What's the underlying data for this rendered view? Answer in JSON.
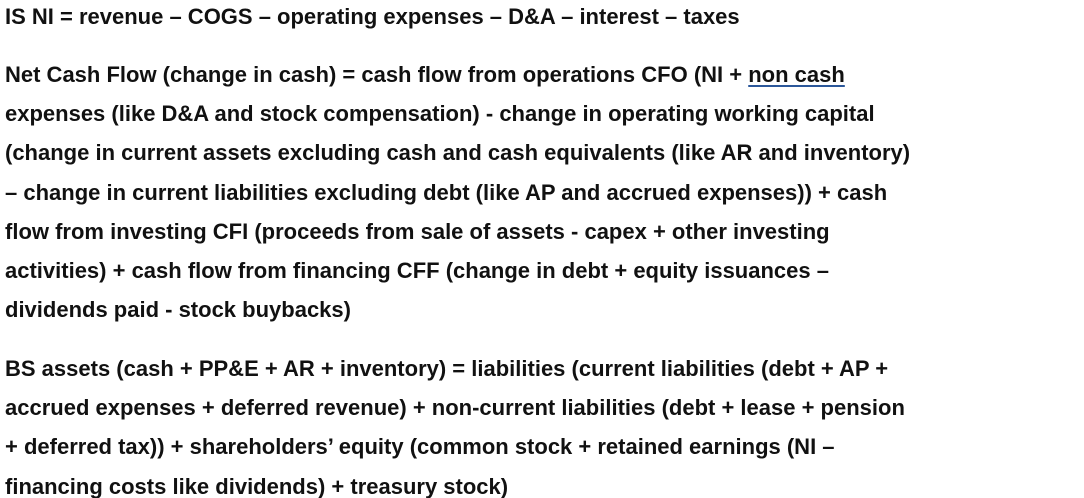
{
  "paragraphs": {
    "income_statement": {
      "lines": [
        "IS NI = revenue – COGS – operating expenses – D&A – interest – taxes"
      ]
    },
    "cash_flow": {
      "line1_before": "Net Cash Flow (change in cash) = cash flow from operations CFO (NI + ",
      "line1_underlined": "non cash",
      "lines": [
        "expenses (like D&A and stock compensation) - change in operating working capital",
        "(change in current assets excluding cash and cash equivalents (like AR and inventory)",
        "– change in current liabilities excluding debt (like AP and accrued expenses)) + cash",
        "flow from investing CFI (proceeds from sale of assets - capex + other investing",
        "activities) + cash flow from financing CFF (change in debt + equity issuances –",
        "dividends paid - stock buybacks)"
      ]
    },
    "balance_sheet": {
      "lines": [
        "BS assets (cash + PP&E + AR + inventory) = liabilities (current liabilities (debt + AP +",
        "accrued expenses + deferred revenue) + non-current liabilities (debt + lease + pension",
        "+ deferred tax)) + shareholders’ equity (common stock + retained earnings (NI –",
        "financing costs like dividends) + treasury stock)"
      ]
    }
  },
  "colors": {
    "text": "#111111",
    "background": "#ffffff",
    "spellcheck_underline": "#2b579a"
  }
}
